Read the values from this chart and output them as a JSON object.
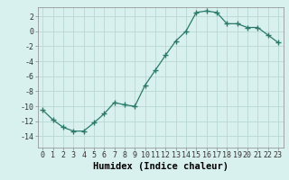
{
  "x": [
    0,
    1,
    2,
    3,
    4,
    5,
    6,
    7,
    8,
    9,
    10,
    11,
    12,
    13,
    14,
    15,
    16,
    17,
    18,
    19,
    20,
    21,
    22,
    23
  ],
  "y": [
    -10.5,
    -11.8,
    -12.8,
    -13.3,
    -13.3,
    -12.2,
    -11.0,
    -9.5,
    -9.8,
    -10.0,
    -7.2,
    -5.2,
    -3.2,
    -1.3,
    0.0,
    2.5,
    2.7,
    2.5,
    1.0,
    1.0,
    0.5,
    0.5,
    -0.5,
    -1.5
  ],
  "xlabel": "Humidex (Indice chaleur)",
  "xlim": [
    -0.5,
    23.5
  ],
  "ylim": [
    -15.5,
    3.2
  ],
  "yticks": [
    -14,
    -12,
    -10,
    -8,
    -6,
    -4,
    -2,
    0,
    2
  ],
  "xticks": [
    0,
    1,
    2,
    3,
    4,
    5,
    6,
    7,
    8,
    9,
    10,
    11,
    12,
    13,
    14,
    15,
    16,
    17,
    18,
    19,
    20,
    21,
    22,
    23
  ],
  "line_color": "#2a7a6a",
  "marker": "+",
  "marker_size": 4,
  "marker_linewidth": 1.0,
  "bg_color": "#d8f0ee",
  "grid_color": "#b8d8d4",
  "xlabel_fontsize": 7.5,
  "tick_fontsize": 6.0,
  "fig_width": 3.2,
  "fig_height": 2.0,
  "dpi": 100
}
